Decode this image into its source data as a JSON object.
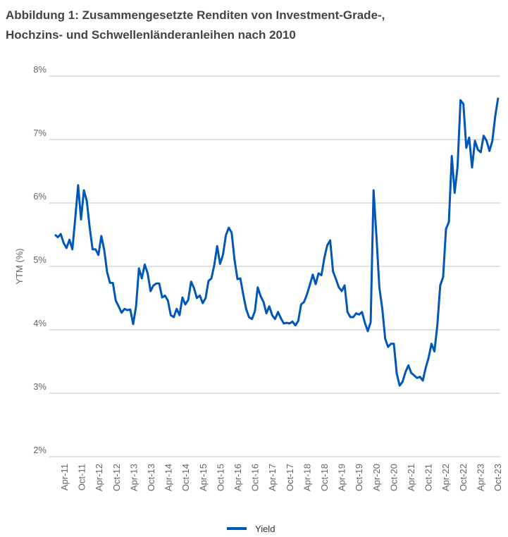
{
  "chart_data": {
    "type": "line",
    "title_lines": [
      "Abbildung 1: Zusammengesetzte Renditen von Investment-Grade-,",
      "Hochzins- und Schwellenländeranleihen nach 2010"
    ],
    "ylabel": "YTM (%)",
    "xlabel": "",
    "ylim": [
      2,
      8
    ],
    "y_ticks": [
      "2%",
      "3%",
      "4%",
      "5%",
      "6%",
      "7%",
      "8%"
    ],
    "x_ticks": [
      "Apr-11",
      "Oct-11",
      "Apr-12",
      "Oct-12",
      "Apr-13",
      "Oct-13",
      "Apr-14",
      "Oct-14",
      "Apr-15",
      "Oct-15",
      "Apr-16",
      "Oct-16",
      "Apr-17",
      "Oct-17",
      "Apr-18",
      "Oct-18",
      "Apr-19",
      "Oct-19",
      "Apr-20",
      "Oct-20",
      "Apr-21",
      "Oct-21",
      "Apr-22",
      "Oct-22",
      "Apr-23",
      "Oct-23"
    ],
    "grid": true,
    "legend_position": "bottom",
    "color": "#0057b8",
    "series": [
      {
        "name": "Yield",
        "values": [
          5.5,
          5.46,
          5.51,
          5.37,
          5.29,
          5.42,
          5.27,
          5.76,
          6.28,
          5.74,
          6.2,
          6.03,
          5.61,
          5.27,
          5.27,
          5.18,
          5.48,
          5.26,
          4.91,
          4.74,
          4.74,
          4.46,
          4.37,
          4.27,
          4.33,
          4.31,
          4.32,
          4.09,
          4.37,
          4.97,
          4.81,
          5.03,
          4.89,
          4.61,
          4.7,
          4.73,
          4.73,
          4.51,
          4.54,
          4.46,
          4.23,
          4.2,
          4.33,
          4.23,
          4.51,
          4.4,
          4.47,
          4.76,
          4.66,
          4.5,
          4.54,
          4.42,
          4.5,
          4.77,
          4.81,
          5.02,
          5.32,
          5.04,
          5.18,
          5.49,
          5.61,
          5.53,
          5.1,
          4.8,
          4.81,
          4.56,
          4.33,
          4.2,
          4.17,
          4.29,
          4.67,
          4.53,
          4.44,
          4.26,
          4.37,
          4.23,
          4.17,
          4.28,
          4.18,
          4.1,
          4.11,
          4.1,
          4.13,
          4.07,
          4.14,
          4.4,
          4.44,
          4.56,
          4.71,
          4.87,
          4.72,
          4.89,
          4.86,
          5.13,
          5.33,
          5.41,
          4.92,
          4.8,
          4.67,
          4.61,
          4.7,
          4.28,
          4.2,
          4.2,
          4.26,
          4.24,
          4.28,
          4.11,
          3.98,
          4.12,
          6.2,
          5.47,
          4.67,
          4.33,
          3.86,
          3.73,
          3.78,
          3.78,
          3.31,
          3.12,
          3.18,
          3.33,
          3.44,
          3.32,
          3.28,
          3.24,
          3.26,
          3.2,
          3.4,
          3.56,
          3.78,
          3.66,
          4.07,
          4.7,
          4.83,
          5.59,
          5.7,
          6.74,
          6.16,
          6.57,
          7.62,
          7.56,
          6.87,
          7.03,
          6.56,
          6.98,
          6.84,
          6.8,
          7.06,
          6.98,
          6.82,
          6.98,
          7.37,
          7.66
        ]
      }
    ]
  }
}
